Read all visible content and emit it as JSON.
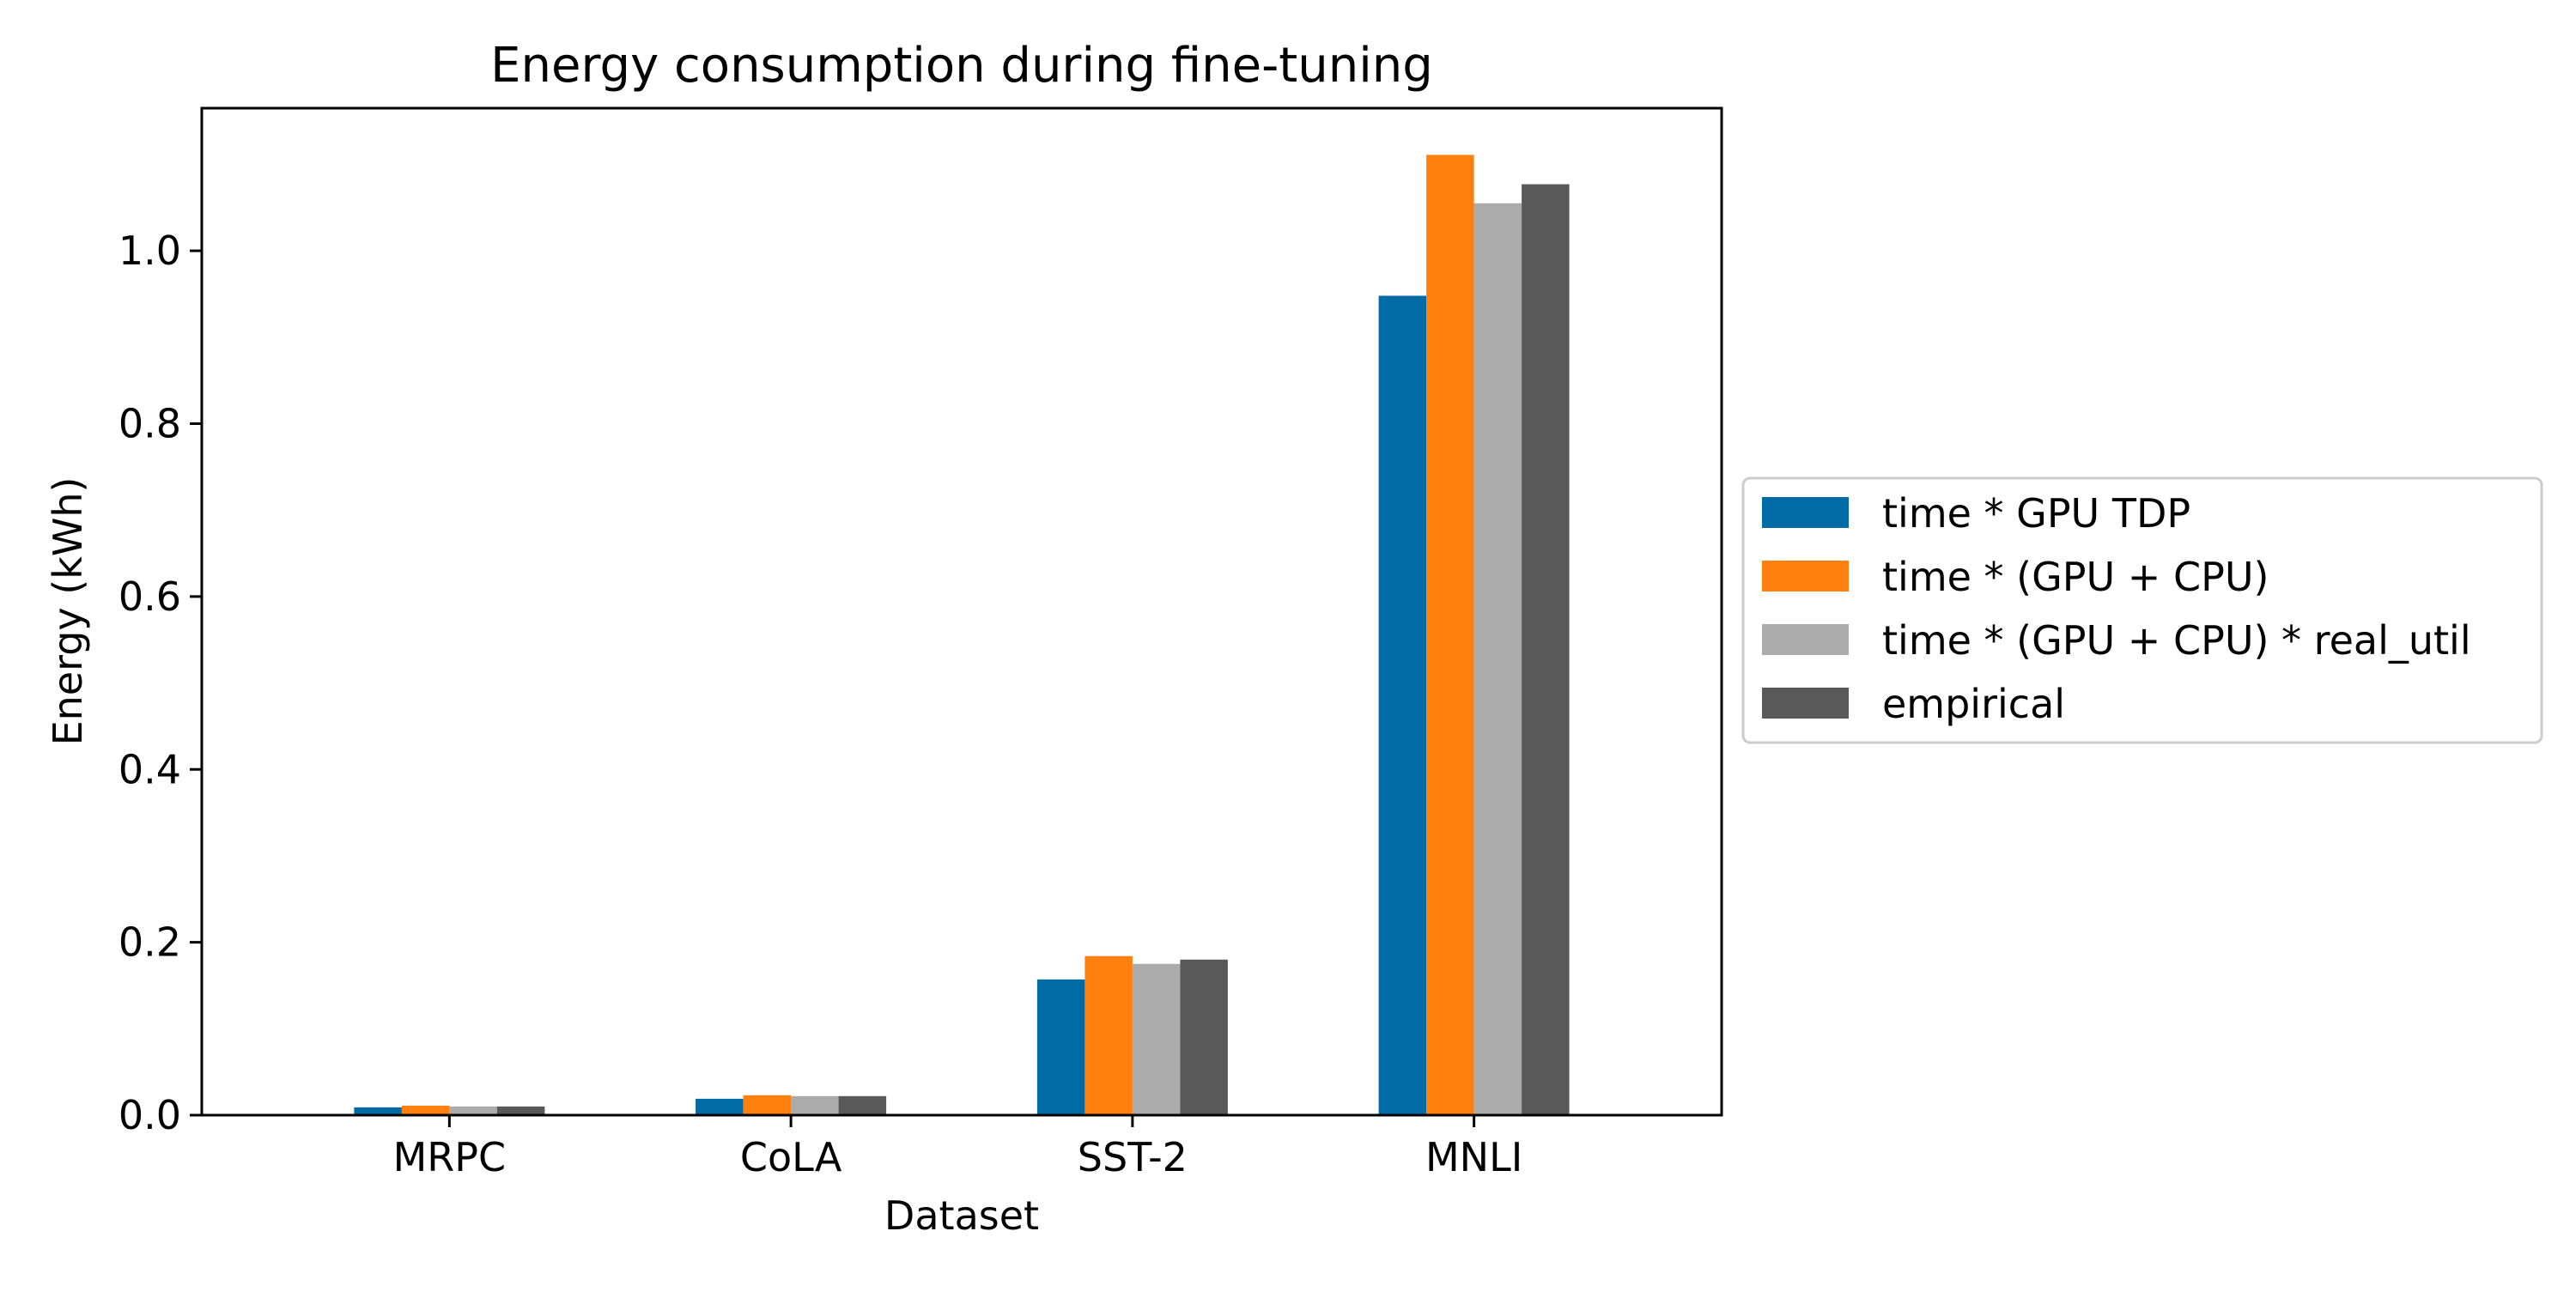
{
  "chart_data": {
    "type": "bar",
    "title": "Energy consumption during fine-tuning",
    "xlabel": "Dataset",
    "ylabel": "Energy (kWh)",
    "categories": [
      "MRPC",
      "CoLA",
      "SST-2",
      "MNLI"
    ],
    "ylim": [
      0,
      1.165
    ],
    "yticks": [
      0.0,
      0.2,
      0.4,
      0.6,
      0.8,
      1.0
    ],
    "ytick_labels": [
      "0.0",
      "0.2",
      "0.4",
      "0.6",
      "0.8",
      "1.0"
    ],
    "grid": false,
    "legend_position": "outside-right",
    "series": [
      {
        "name": "time * GPU TDP",
        "color": "#006BA4",
        "values": [
          0.009,
          0.019,
          0.157,
          0.948
        ]
      },
      {
        "name": "time * (GPU + CPU)",
        "color": "#FF800E",
        "values": [
          0.011,
          0.023,
          0.184,
          1.111
        ]
      },
      {
        "name": "time * (GPU + CPU) * real_util",
        "color": "#ABABAB",
        "values": [
          0.01,
          0.022,
          0.175,
          1.055
        ]
      },
      {
        "name": "empirical",
        "color": "#595959",
        "values": [
          0.01,
          0.022,
          0.18,
          1.077
        ]
      }
    ]
  }
}
